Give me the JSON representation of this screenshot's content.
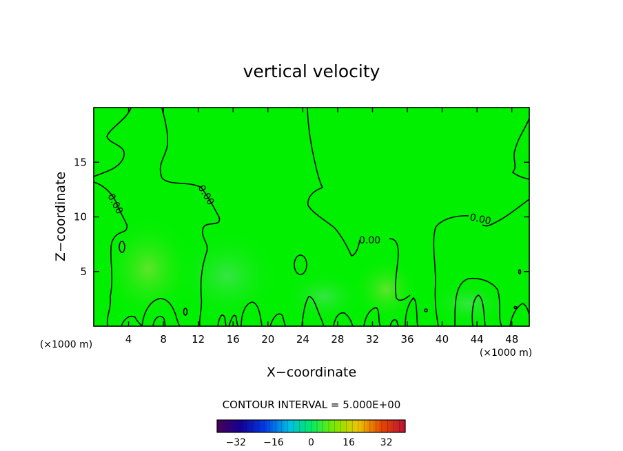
{
  "chart_data": {
    "type": "heatmap",
    "title": "vertical velocity",
    "xlabel": "X−coordinate",
    "ylabel": "Z−coordinate",
    "x_unit_label": "(×1000 m)",
    "x_unit_label_right": "(×1000 m)",
    "xlim": [
      0,
      50
    ],
    "ylim": [
      0,
      20
    ],
    "x_ticks": [
      4,
      8,
      12,
      16,
      20,
      24,
      28,
      32,
      36,
      40,
      44,
      48
    ],
    "y_ticks": [
      5,
      10,
      15
    ],
    "contour_interval_text": "CONTOUR INTERVAL = 5.000E+00",
    "contour_labels": [
      "0.00",
      "0.00",
      "0.00",
      "0.00",
      "0.00"
    ],
    "colorbar": {
      "range": [
        -40,
        40
      ],
      "ticks": [
        -32,
        -16,
        0,
        16,
        32
      ],
      "tick_labels": [
        "−32",
        "−16",
        "0",
        "16",
        "32"
      ]
    },
    "field_color": "#00f000",
    "contour_color": "#000000"
  }
}
